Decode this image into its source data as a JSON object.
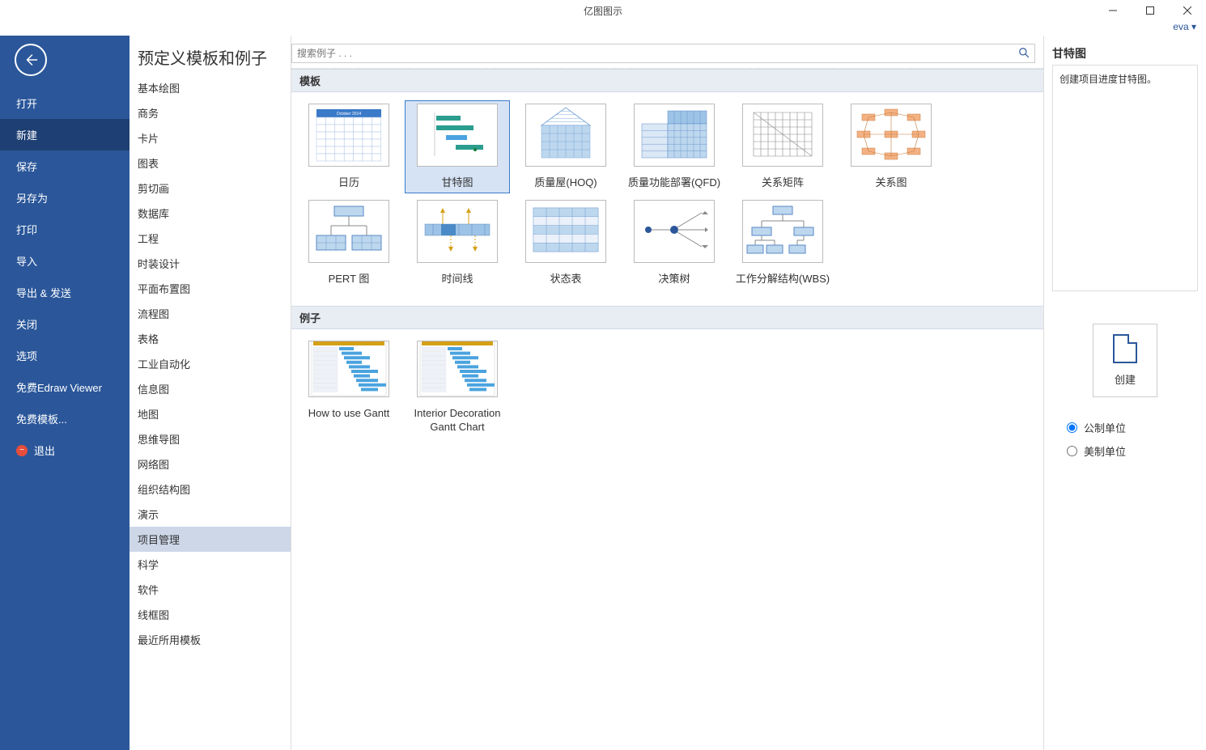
{
  "app_title": "亿图图示",
  "user_name": "eva",
  "leftnav": {
    "open": "打开",
    "new": "新建",
    "save": "保存",
    "save_as": "另存为",
    "print": "打印",
    "import": "导入",
    "export_send": "导出 & 发送",
    "close": "关闭",
    "options": "选项",
    "free_viewer": "免费Edraw Viewer",
    "free_templates": "免费模板...",
    "exit": "退出"
  },
  "page_heading": "预定义模板和例子",
  "search_placeholder": "搜索例子 . . .",
  "categories": [
    "基本绘图",
    "商务",
    "卡片",
    "图表",
    "剪切画",
    "数据库",
    "工程",
    "时装设计",
    "平面布置图",
    "流程图",
    "表格",
    "工业自动化",
    "信息图",
    "地图",
    "思维导图",
    "网络图",
    "组织结构图",
    "演示",
    "项目管理",
    "科学",
    "软件",
    "线框图",
    "最近所用模板"
  ],
  "selected_category_index": 18,
  "section_templates": "模板",
  "section_examples": "例子",
  "templates": [
    {
      "label": "日历",
      "icon": "calendar"
    },
    {
      "label": "甘特图",
      "icon": "gantt"
    },
    {
      "label": "质量屋(HOQ)",
      "icon": "hoq"
    },
    {
      "label": "质量功能部署(QFD)",
      "icon": "qfd"
    },
    {
      "label": "关系矩阵",
      "icon": "matrix"
    },
    {
      "label": "关系图",
      "icon": "relation"
    },
    {
      "label": "PERT 图",
      "icon": "pert"
    },
    {
      "label": "时间线",
      "icon": "timeline"
    },
    {
      "label": "状态表",
      "icon": "status"
    },
    {
      "label": "决策树",
      "icon": "decision"
    },
    {
      "label": "工作分解结构(WBS)",
      "icon": "wbs"
    }
  ],
  "selected_template_index": 1,
  "examples": [
    {
      "label": "How to use Gantt"
    },
    {
      "label": "Interior Decoration Gantt Chart"
    }
  ],
  "rightpanel": {
    "title": "甘特图",
    "description": "创建项目进度甘特图。",
    "create_label": "创建",
    "unit_metric": "公制单位",
    "unit_imperial": "美制单位",
    "selected_unit": "metric"
  },
  "colors": {
    "brand": "#2b579a",
    "brand_dark": "#1e3f73",
    "accent_light": "#d6e3f5",
    "section_bg": "#e8ecf3",
    "cat_selected": "#cdd7e8"
  },
  "thumb_colors": {
    "cal_header": "#3a7ac8",
    "gantt_bar1": "#2a9d8f",
    "gantt_bar2": "#4aa3df",
    "hoq_fill": "#bdd7ee",
    "qfd_fill": "#9dc3e6",
    "matrix_line": "#888",
    "rel_node": "#f4b183",
    "pert_box": "#bdd7ee",
    "timeline_box": "#9dc3e6",
    "status_row": "#bdd7ee",
    "dt_node": "#2b579a",
    "wbs_box": "#bdd7ee"
  }
}
